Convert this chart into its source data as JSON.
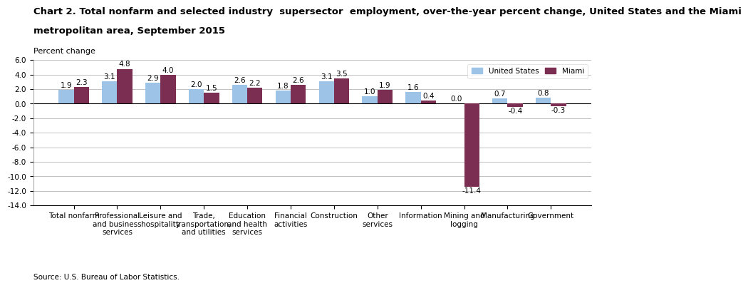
{
  "title_line1": "Chart 2. Total nonfarm and selected industry  supersector  employment, over-the-year percent change, United States and the Miami",
  "title_line2": "metropolitan area, September 2015",
  "ylabel": "Percent change",
  "source": "Source: U.S. Bureau of Labor Statistics.",
  "categories": [
    "Total nonfarm",
    "Professional\nand business\nservices",
    "Leisure and\nhospitality",
    "Trade,\ntransportation,\nand utilities",
    "Education\nand health\nservices",
    "Financial\nactivities",
    "Construction",
    "Other\nservices",
    "Information",
    "Mining and\nlogging",
    "Manufacturing",
    "Government"
  ],
  "us_values": [
    1.9,
    3.1,
    2.9,
    2.0,
    2.6,
    1.8,
    3.1,
    1.0,
    1.6,
    0.0,
    0.7,
    0.8
  ],
  "miami_values": [
    2.3,
    4.8,
    4.0,
    1.5,
    2.2,
    2.6,
    3.5,
    1.9,
    0.4,
    -11.4,
    -0.4,
    -0.3
  ],
  "us_color": "#9DC3E6",
  "miami_color": "#7B2D52",
  "ylim": [
    -14.0,
    6.0
  ],
  "yticks": [
    -14.0,
    -12.0,
    -10.0,
    -8.0,
    -6.0,
    -4.0,
    -2.0,
    0.0,
    2.0,
    4.0,
    6.0
  ],
  "legend_labels": [
    "United States",
    "Miami"
  ],
  "bar_width": 0.35,
  "label_fontsize": 7.5,
  "tick_fontsize": 7.5,
  "title_fontsize": 9.5,
  "ylabel_fontsize": 8
}
